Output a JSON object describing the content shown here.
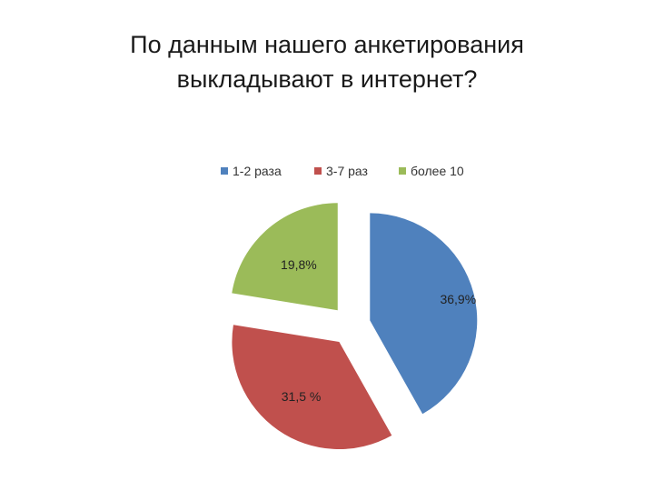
{
  "slide": {
    "title_line1": "По данным нашего анкетирования",
    "title_line2": "выкладывают в интернет?"
  },
  "chart_data": {
    "type": "pie",
    "categories": [
      "1-2 раза",
      "3-7 раз",
      "более 10"
    ],
    "values": [
      36.9,
      31.5,
      19.8
    ],
    "labels": [
      "36,9%",
      "31,5 %",
      "19,8%"
    ],
    "colors": [
      "#4F81BD",
      "#C0504D",
      "#9BBB59"
    ],
    "legend_position": "top",
    "exploded": true
  }
}
